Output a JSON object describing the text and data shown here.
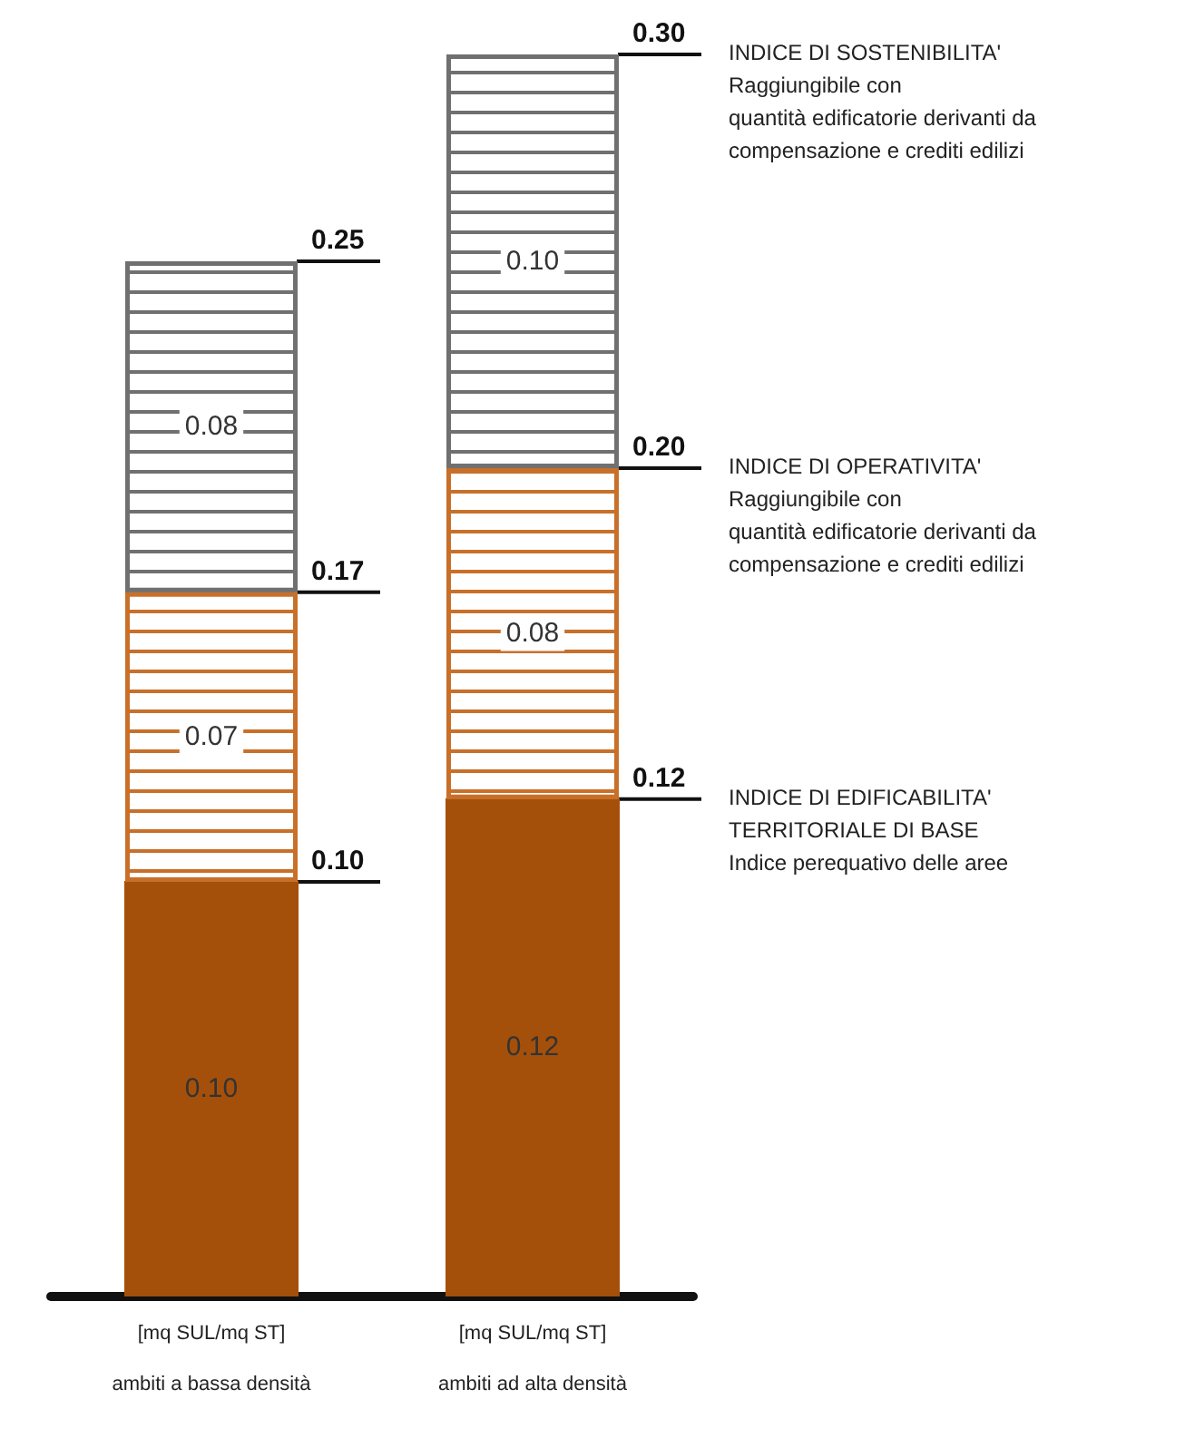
{
  "chart_data": {
    "type": "bar",
    "stacked": true,
    "categories": [
      "[mq SUL/mq ST]\n\nambiti a bassa densità",
      "[mq SUL/mq ST]\n\nambiti ad alta densità"
    ],
    "ylim": [
      0,
      0.3
    ],
    "series": [
      {
        "color": "#a5500a",
        "values": [
          0.1,
          0.12
        ],
        "value_labels": [
          "0.10",
          "0.12"
        ]
      },
      {
        "color": "#c8702a",
        "values": [
          0.07,
          0.08
        ],
        "value_labels": [
          "0.07",
          "0.08"
        ]
      },
      {
        "color": "#707070",
        "values": [
          0.08,
          0.1
        ],
        "value_labels": [
          "0.08",
          "0.10"
        ]
      }
    ],
    "annotations": [
      "0.10",
      "0.17",
      "0.25",
      "0.12",
      "0.20",
      "0.30",
      "INDICE DI SOSTENIBILITA'\nRaggiungibile con\nquantità edificatorie derivanti da\ncompensazione e crediti edilizi",
      "INDICE DI OPERATIVITA'\nRaggiungibile con\nquantità edificatorie derivanti da\ncompensazione e crediti edilizi",
      "INDICE DI EDIFICABILITA'\nTERRITORIALE DI BASE\nIndice perequativo delle aree"
    ]
  }
}
